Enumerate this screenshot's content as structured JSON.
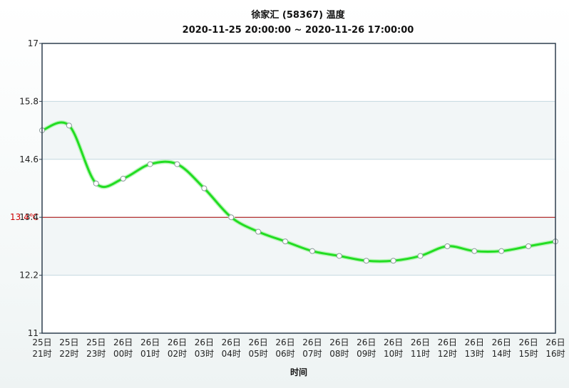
{
  "chart_data": {
    "type": "line",
    "title": "徐家汇 (58367) 温度",
    "subtitle": "2020-11-25 20:00:00 ~ 2020-11-26 17:00:00",
    "xlabel": "时间",
    "ylabel": "",
    "ylim": [
      11,
      17
    ],
    "yticks": [
      "11",
      "12.2",
      "13.4",
      "14.6",
      "15.8",
      "17"
    ],
    "categories": [
      [
        "25日",
        "21时"
      ],
      [
        "25日",
        "22时"
      ],
      [
        "25日",
        "23时"
      ],
      [
        "26日",
        "00时"
      ],
      [
        "26日",
        "01时"
      ],
      [
        "26日",
        "02时"
      ],
      [
        "26日",
        "03时"
      ],
      [
        "26日",
        "04时"
      ],
      [
        "26日",
        "05时"
      ],
      [
        "26日",
        "06时"
      ],
      [
        "26日",
        "07时"
      ],
      [
        "26日",
        "08时"
      ],
      [
        "26日",
        "09时"
      ],
      [
        "26日",
        "10时"
      ],
      [
        "26日",
        "11时"
      ],
      [
        "26日",
        "12时"
      ],
      [
        "26日",
        "13时"
      ],
      [
        "26日",
        "14时"
      ],
      [
        "26日",
        "15时"
      ],
      [
        "26日",
        "16时"
      ]
    ],
    "series": [
      {
        "values": [
          15.2,
          15.3,
          14.1,
          14.2,
          14.5,
          14.5,
          14.0,
          13.4,
          13.1,
          12.9,
          12.7,
          12.6,
          12.5,
          12.5,
          12.6,
          12.8,
          12.7,
          12.7,
          12.8,
          12.9
        ],
        "color": "#22dd22"
      }
    ],
    "reference_line": {
      "value": 13.4,
      "label": "13.4℃",
      "color": "#aa0000"
    },
    "grid": true,
    "legend": "none"
  }
}
